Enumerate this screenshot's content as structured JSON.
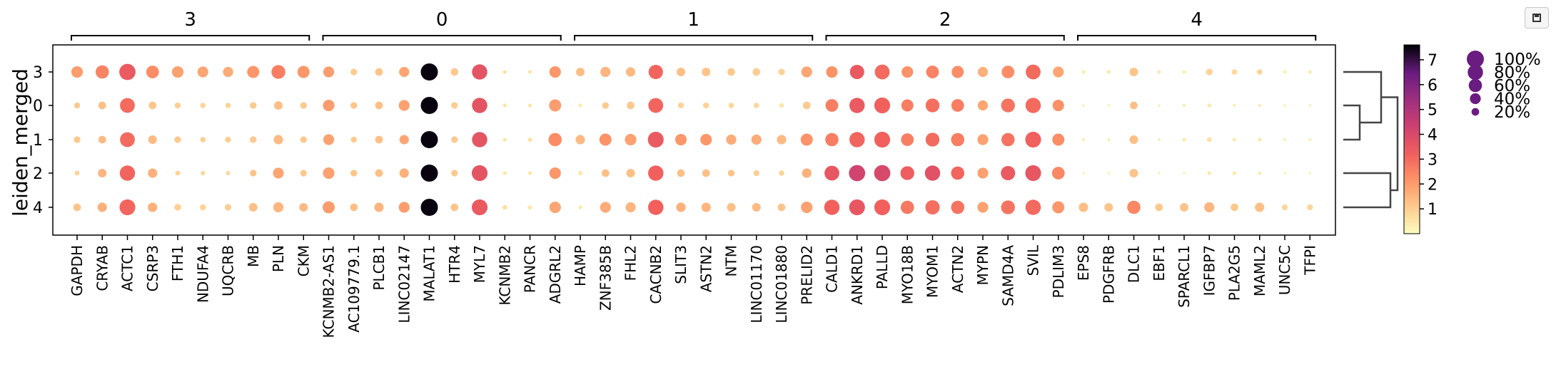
{
  "toolbar": {
    "save_icon": "save-icon"
  },
  "chart_data": {
    "type": "dotplot",
    "ylabel": "leiden_merged",
    "rows": [
      "3",
      "0",
      "1",
      "2",
      "4"
    ],
    "gene_groups": [
      {
        "label": "3",
        "genes": [
          "GAPDH",
          "CRYAB",
          "ACTC1",
          "CSRP3",
          "FTH1",
          "NDUFA4",
          "UQCRB",
          "MB",
          "PLN",
          "CKM"
        ]
      },
      {
        "label": "0",
        "genes": [
          "KCNMB2-AS1",
          "AC109779.1",
          "PLCB1",
          "LINC02147",
          "MALAT1",
          "HTR4",
          "MYL7",
          "KCNMB2",
          "PANCR",
          "ADGRL2"
        ]
      },
      {
        "label": "1",
        "genes": [
          "HAMP",
          "ZNF385B",
          "FHL2",
          "CACNB2",
          "SLIT3",
          "ASTN2",
          "NTM",
          "LINC01170",
          "LINC01880",
          "PRELID2"
        ]
      },
      {
        "label": "2",
        "genes": [
          "CALD1",
          "ANKRD1",
          "PALLD",
          "MYO18B",
          "MYOM1",
          "ACTN2",
          "MYPN",
          "SAMD4A",
          "SVIL",
          "PDLIM3"
        ]
      },
      {
        "label": "4",
        "genes": [
          "EPS8",
          "PDGFRB",
          "DLC1",
          "EBF1",
          "SPARCL1",
          "IGFBP7",
          "PLA2G5",
          "MAML2",
          "UNC5C",
          "TFPI"
        ]
      }
    ],
    "mean_expression": [
      [
        2.0,
        2.5,
        3.4,
        2.3,
        1.9,
        1.8,
        1.7,
        2.1,
        2.6,
        2.1,
        2.0,
        1.0,
        1.2,
        1.8,
        7.5,
        1.1,
        3.6,
        0.6,
        0.5,
        2.1,
        1.3,
        1.5,
        1.4,
        3.1,
        1.3,
        1.2,
        1.1,
        1.0,
        0.9,
        1.8,
        2.2,
        3.4,
        3.0,
        2.2,
        2.5,
        2.3,
        1.6,
        2.3,
        3.0,
        1.8,
        0.3,
        0.4,
        1.2,
        0.4,
        0.3,
        0.9,
        0.8,
        0.9,
        0.3,
        0.3
      ],
      [
        1.1,
        1.3,
        3.0,
        1.2,
        1.0,
        0.9,
        0.9,
        1.1,
        1.3,
        1.1,
        2.0,
        1.2,
        1.3,
        1.9,
        7.5,
        1.0,
        3.6,
        0.5,
        0.5,
        2.0,
        0.4,
        1.1,
        1.1,
        3.1,
        0.9,
        0.9,
        0.8,
        0.8,
        0.5,
        1.1,
        2.6,
        3.4,
        3.2,
        2.6,
        2.9,
        2.6,
        1.8,
        2.8,
        3.0,
        2.2,
        0.3,
        0.3,
        1.3,
        0.3,
        0.4,
        0.5,
        0.4,
        0.4,
        0.3,
        0.3
      ],
      [
        1.1,
        1.4,
        3.0,
        1.4,
        1.1,
        1.0,
        1.0,
        1.1,
        1.4,
        1.1,
        1.9,
        1.1,
        1.3,
        1.8,
        7.5,
        1.1,
        3.6,
        0.5,
        0.6,
        2.3,
        1.4,
        2.2,
        1.9,
        3.4,
        2.1,
        2.1,
        1.7,
        1.7,
        1.4,
        2.2,
        2.6,
        3.1,
        3.2,
        2.6,
        3.0,
        2.6,
        1.9,
        2.8,
        3.2,
        2.3,
        0.4,
        0.4,
        1.3,
        0.3,
        0.4,
        0.6,
        0.4,
        0.4,
        0.3,
        0.3
      ],
      [
        0.9,
        1.5,
        3.1,
        1.6,
        0.9,
        0.9,
        0.8,
        1.2,
        1.8,
        1.1,
        1.9,
        1.2,
        1.3,
        1.6,
        7.5,
        1.1,
        3.6,
        0.5,
        0.5,
        2.1,
        0.5,
        1.3,
        1.3,
        3.2,
        1.3,
        1.3,
        1.2,
        1.0,
        0.9,
        1.6,
        3.5,
        4.2,
        4.0,
        3.3,
        3.7,
        3.1,
        1.9,
        3.4,
        3.5,
        2.4,
        0.3,
        0.3,
        1.2,
        0.3,
        0.3,
        0.4,
        0.4,
        0.4,
        0.3,
        0.3
      ],
      [
        1.2,
        1.6,
        3.1,
        1.6,
        1.0,
        0.9,
        1.0,
        1.3,
        1.5,
        1.4,
        2.0,
        1.3,
        1.5,
        2.0,
        7.5,
        1.2,
        3.4,
        0.6,
        0.5,
        1.8,
        0.4,
        1.7,
        1.5,
        3.2,
        1.6,
        1.5,
        1.3,
        1.4,
        1.2,
        1.9,
        3.2,
        3.5,
        3.2,
        2.7,
        2.9,
        2.8,
        1.9,
        2.8,
        3.0,
        2.1,
        1.3,
        1.2,
        2.4,
        1.1,
        1.2,
        1.5,
        1.1,
        1.3,
        0.8,
        0.8
      ]
    ],
    "fraction_expressing": [
      [
        0.45,
        0.6,
        0.9,
        0.55,
        0.45,
        0.4,
        0.35,
        0.5,
        0.65,
        0.5,
        0.4,
        0.15,
        0.2,
        0.35,
        1.0,
        0.2,
        0.8,
        0.05,
        0.05,
        0.45,
        0.25,
        0.35,
        0.3,
        0.7,
        0.25,
        0.25,
        0.2,
        0.2,
        0.15,
        0.4,
        0.45,
        0.7,
        0.75,
        0.45,
        0.55,
        0.5,
        0.35,
        0.55,
        0.75,
        0.4,
        0.05,
        0.05,
        0.25,
        0.05,
        0.05,
        0.15,
        0.1,
        0.1,
        0.05,
        0.05
      ],
      [
        0.12,
        0.2,
        0.75,
        0.2,
        0.12,
        0.1,
        0.1,
        0.15,
        0.25,
        0.15,
        0.45,
        0.15,
        0.2,
        0.4,
        1.0,
        0.15,
        0.8,
        0.05,
        0.05,
        0.5,
        0.05,
        0.15,
        0.2,
        0.75,
        0.12,
        0.12,
        0.1,
        0.1,
        0.08,
        0.2,
        0.55,
        0.8,
        0.85,
        0.5,
        0.65,
        0.55,
        0.35,
        0.65,
        0.8,
        0.45,
        0.02,
        0.02,
        0.2,
        0.02,
        0.03,
        0.05,
        0.03,
        0.03,
        0.02,
        0.02
      ],
      [
        0.15,
        0.2,
        0.75,
        0.25,
        0.15,
        0.1,
        0.12,
        0.15,
        0.3,
        0.15,
        0.4,
        0.12,
        0.2,
        0.3,
        1.0,
        0.15,
        0.8,
        0.05,
        0.06,
        0.6,
        0.3,
        0.5,
        0.45,
        0.85,
        0.45,
        0.45,
        0.35,
        0.35,
        0.3,
        0.5,
        0.6,
        0.8,
        0.85,
        0.55,
        0.65,
        0.6,
        0.4,
        0.6,
        0.85,
        0.5,
        0.03,
        0.03,
        0.25,
        0.03,
        0.05,
        0.08,
        0.05,
        0.05,
        0.03,
        0.03
      ],
      [
        0.08,
        0.25,
        0.8,
        0.3,
        0.08,
        0.06,
        0.06,
        0.15,
        0.4,
        0.15,
        0.45,
        0.15,
        0.2,
        0.3,
        1.0,
        0.15,
        0.85,
        0.05,
        0.05,
        0.45,
        0.06,
        0.2,
        0.25,
        0.8,
        0.2,
        0.2,
        0.15,
        0.12,
        0.1,
        0.3,
        0.75,
        0.9,
        0.9,
        0.65,
        0.8,
        0.6,
        0.4,
        0.7,
        0.85,
        0.55,
        0.02,
        0.02,
        0.25,
        0.02,
        0.02,
        0.05,
        0.05,
        0.04,
        0.02,
        0.02
      ],
      [
        0.2,
        0.3,
        0.85,
        0.3,
        0.15,
        0.12,
        0.15,
        0.25,
        0.35,
        0.25,
        0.5,
        0.2,
        0.3,
        0.4,
        1.0,
        0.2,
        0.85,
        0.08,
        0.06,
        0.45,
        0.05,
        0.4,
        0.35,
        0.8,
        0.3,
        0.3,
        0.25,
        0.25,
        0.2,
        0.45,
        0.8,
        0.85,
        0.85,
        0.6,
        0.7,
        0.6,
        0.4,
        0.65,
        0.8,
        0.5,
        0.3,
        0.25,
        0.6,
        0.2,
        0.25,
        0.35,
        0.2,
        0.3,
        0.12,
        0.12
      ]
    ],
    "colorbar": {
      "ticks": [
        1,
        2,
        3,
        4,
        5,
        6,
        7
      ],
      "range": [
        0,
        7.6
      ]
    },
    "size_legend": [
      "100%",
      "80%",
      "60%",
      "40%",
      "20%"
    ],
    "dendrogram_order": [
      "3",
      "0",
      "1",
      "2",
      "4"
    ]
  }
}
